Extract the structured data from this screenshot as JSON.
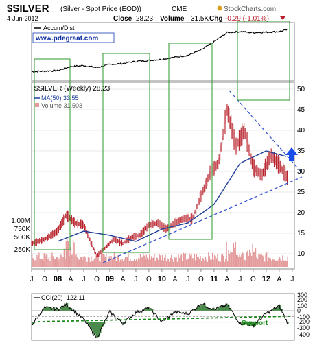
{
  "header": {
    "symbol": "$SILVER",
    "description": "(Silver - Spot Price (EOD))",
    "exchange": "CME",
    "brand": "StockCharts.com",
    "date": "4-Jun-2012",
    "close_label": "Close",
    "close_value": "28.23",
    "volume_label": "Volume",
    "volume_value": "31.5K",
    "chg_label": "Chg",
    "chg_value": "-0.29 (-1.01%)"
  },
  "accum_panel": {
    "legend": "Accum/Dist",
    "watermark": "www.pdegraaf.com"
  },
  "price_panel": {
    "legend_price": "$SILVER (Weekly) 28.23",
    "legend_ma": "MA(50) 33.55",
    "legend_volume": "Volume 31,503",
    "yaxis_right": [
      "50",
      "45",
      "40",
      "35",
      "30",
      "25",
      "20",
      "15",
      "10"
    ],
    "yaxis_left_volume": [
      "1.00M",
      "750K",
      "500K",
      "250K"
    ]
  },
  "x_axis": {
    "months": [
      "J",
      "O",
      "08",
      "A",
      "J",
      "O",
      "09",
      "A",
      "J",
      "O",
      "10",
      "A",
      "J",
      "O",
      "11",
      "A",
      "J",
      "O",
      "12",
      "A",
      "J"
    ]
  },
  "cci_panel": {
    "legend": "CCI(20) -122.11",
    "yaxis": [
      "300",
      "200",
      "100",
      "0",
      "-100",
      "-200",
      "-300",
      "-400"
    ],
    "support_label": "Support"
  },
  "colors": {
    "price_bar": "#b8202a",
    "ma_line": "#1f3f9a",
    "volume": "#e49a9a",
    "trend_line": "#3050d0",
    "box": "#2a9a2a",
    "arrow": "#1a4ee8",
    "support": "#1a8a1a",
    "cci_fill": "#4a8a4a"
  },
  "chart_data": [
    {
      "type": "line",
      "name": "Accum/Dist",
      "x": [
        "2007-07",
        "2008-01",
        "2008-04",
        "2008-07",
        "2008-10",
        "2009-01",
        "2009-04",
        "2009-07",
        "2009-10",
        "2010-01",
        "2010-04",
        "2010-07",
        "2010-10",
        "2011-01",
        "2011-04",
        "2011-07",
        "2011-10",
        "2012-01",
        "2012-04",
        "2012-06"
      ],
      "y": [
        0.1,
        0.12,
        0.2,
        0.22,
        0.18,
        0.24,
        0.26,
        0.3,
        0.32,
        0.34,
        0.38,
        0.42,
        0.52,
        0.68,
        0.86,
        0.88,
        0.86,
        0.87,
        0.88,
        0.92
      ]
    },
    {
      "type": "bar",
      "name": "$SILVER (Weekly)",
      "x": [
        "2007-07",
        "2007-10",
        "2008-01",
        "2008-03",
        "2008-05",
        "2008-07",
        "2008-09",
        "2008-10",
        "2008-12",
        "2009-02",
        "2009-04",
        "2009-06",
        "2009-08",
        "2009-10",
        "2009-12",
        "2010-02",
        "2010-04",
        "2010-06",
        "2010-08",
        "2010-10",
        "2010-12",
        "2011-02",
        "2011-04",
        "2011-06",
        "2011-08",
        "2011-10",
        "2011-12",
        "2012-02",
        "2012-04",
        "2012-06"
      ],
      "y": [
        12.5,
        13.5,
        15.5,
        19.5,
        17.5,
        17.0,
        12.0,
        9.5,
        11.5,
        13.5,
        12.5,
        14.0,
        14.5,
        17.0,
        17.5,
        16.0,
        17.5,
        18.5,
        18.5,
        24.0,
        29.5,
        32.0,
        45.0,
        36.0,
        40.0,
        31.0,
        29.0,
        34.0,
        31.5,
        28.23
      ],
      "ylim": [
        8,
        51
      ]
    },
    {
      "type": "line",
      "name": "MA(50)",
      "x": [
        "2008-01",
        "2008-07",
        "2009-01",
        "2009-07",
        "2010-01",
        "2010-07",
        "2011-01",
        "2011-07",
        "2012-01",
        "2012-06"
      ],
      "y": [
        13.0,
        15.5,
        14.5,
        13.0,
        16.0,
        17.5,
        22.0,
        32.0,
        35.0,
        33.55
      ]
    },
    {
      "type": "line",
      "name": "CCI(20)",
      "x": [
        "2007-07",
        "2007-10",
        "2008-01",
        "2008-03",
        "2008-07",
        "2008-10",
        "2009-01",
        "2009-04",
        "2009-07",
        "2009-10",
        "2010-01",
        "2010-04",
        "2010-07",
        "2010-10",
        "2011-01",
        "2011-04",
        "2011-07",
        "2011-10",
        "2012-01",
        "2012-04",
        "2012-06"
      ],
      "y": [
        -150,
        150,
        120,
        210,
        -50,
        -380,
        80,
        -120,
        60,
        150,
        -100,
        80,
        40,
        220,
        120,
        200,
        -120,
        -160,
        50,
        180,
        -122.11
      ],
      "ylim": [
        -400,
        300
      ]
    }
  ]
}
